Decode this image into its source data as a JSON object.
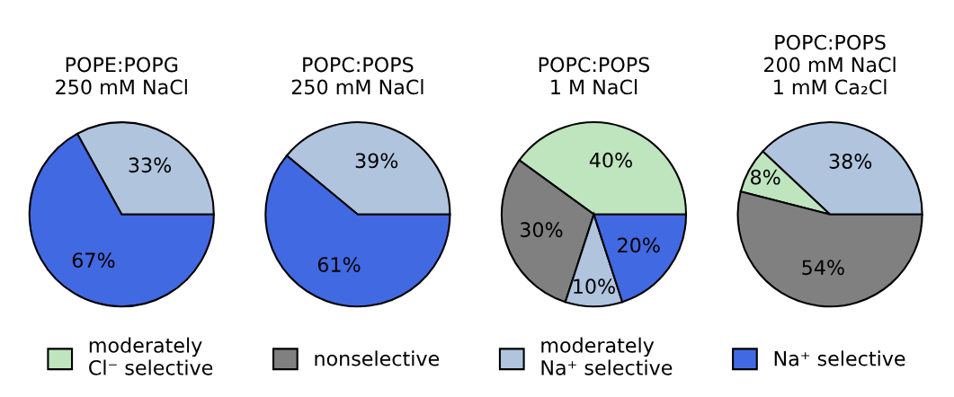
{
  "chart_data": [
    {
      "type": "pie",
      "title": "POPE:POPG\n250 mM NaCl",
      "categories": [
        null,
        null
      ],
      "values": [
        33,
        67
      ],
      "colors": [
        "#b0c4de",
        "#4169e1"
      ],
      "value_labels": [
        "33%",
        "67%"
      ]
    },
    {
      "type": "pie",
      "title": "POPC:POPS\n250 mM NaCl",
      "categories": [
        null,
        null
      ],
      "values": [
        39,
        61
      ],
      "colors": [
        "#b0c4de",
        "#4169e1"
      ],
      "value_labels": [
        "39%",
        "61%"
      ]
    },
    {
      "type": "pie",
      "title": "POPC:POPS\n1 M NaCl",
      "categories": [
        "moderately\nCl⁻ selective",
        "nonselective",
        "moderately\nNa⁺ selective",
        "Na⁺ selective"
      ],
      "values": [
        40,
        30,
        10,
        20
      ],
      "colors": [
        "#bfe5bf",
        "#808080",
        "#b0c4de",
        "#4169e1"
      ],
      "value_labels": [
        "40%",
        "30%",
        "10%",
        "20%"
      ],
      "legend": "bottom"
    },
    {
      "type": "pie",
      "title": "POPC:POPS\n200 mM NaCl\n1 mM Ca₂Cl",
      "categories": [
        null,
        null,
        null
      ],
      "values": [
        38,
        8,
        54
      ],
      "colors": [
        "#b0c4de",
        "#bfe5bf",
        "#808080"
      ],
      "value_labels": [
        "38%",
        "8%",
        "54%"
      ]
    }
  ]
}
